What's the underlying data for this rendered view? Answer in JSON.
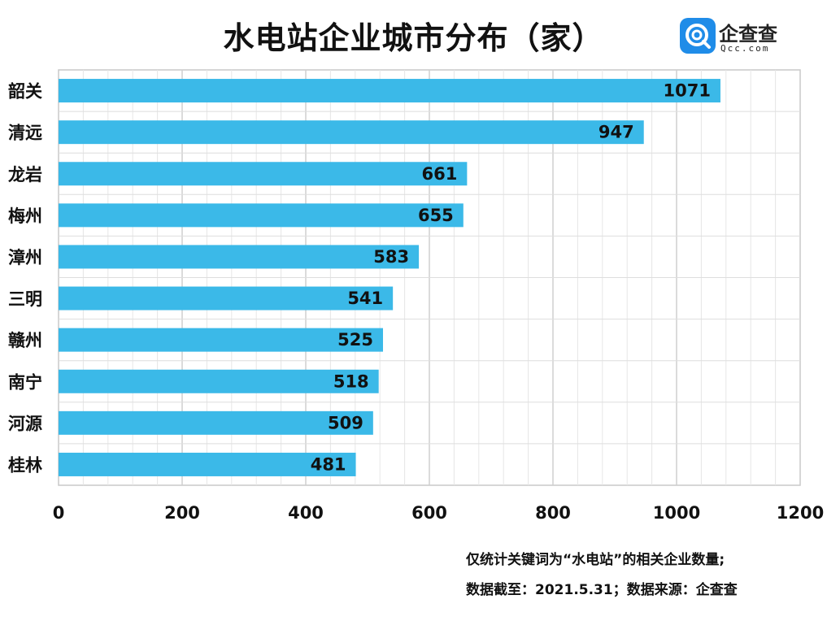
{
  "title": "水电站企业城市分布（家）",
  "logo": {
    "name": "企查查",
    "sub": "Qcc.com",
    "icon": "qcc-logo-icon"
  },
  "chart_data": {
    "type": "bar",
    "orientation": "horizontal",
    "categories": [
      "韶关",
      "清远",
      "龙岩",
      "梅州",
      "漳州",
      "三明",
      "赣州",
      "南宁",
      "河源",
      "桂林"
    ],
    "values": [
      1071,
      947,
      661,
      655,
      583,
      541,
      525,
      518,
      509,
      481
    ],
    "value_labels": [
      "1071",
      "947",
      "661",
      "655",
      "583",
      "541",
      "525",
      "518",
      "509",
      "481"
    ],
    "xlim": [
      0,
      1200
    ],
    "xticks": [
      "0",
      "200",
      "400",
      "600",
      "800",
      "1000",
      "1200"
    ],
    "grid": true,
    "bar_color": "#3bb9e8"
  },
  "notes": {
    "line1": "仅统计关键词为“水电站”的相关企业数量;",
    "line2": "数据截至：2021.5.31；数据来源：企查查"
  }
}
